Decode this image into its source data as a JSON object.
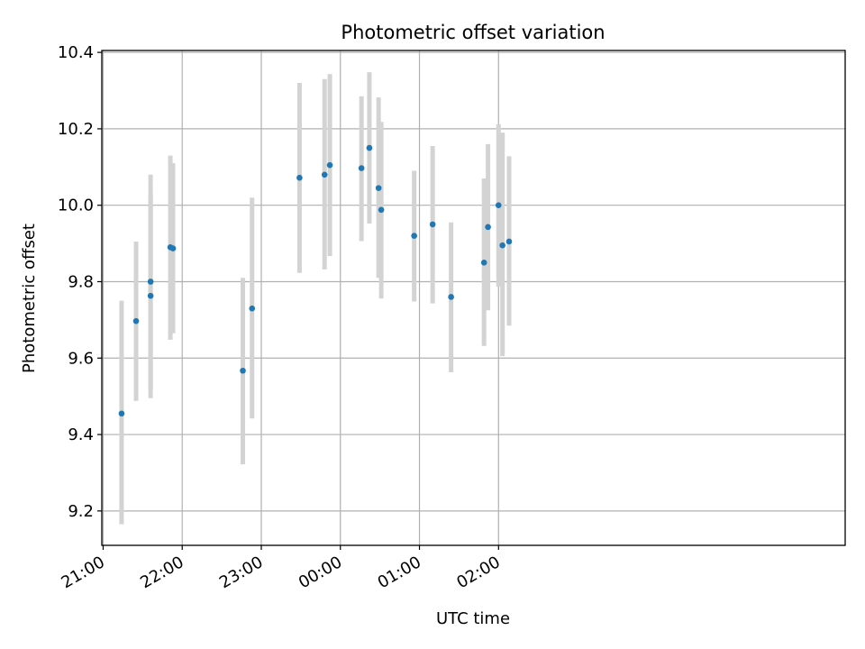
{
  "chart_data": {
    "type": "scatter",
    "title": "Photometric offset variation",
    "xlabel": "UTC time",
    "ylabel": "Photometric offset",
    "x_minutes_range": [
      1259,
      1823
    ],
    "ylim": [
      9.11,
      10.405
    ],
    "grid": true,
    "x_ticks": [
      {
        "minute": 1260,
        "label": "21:00"
      },
      {
        "minute": 1320,
        "label": "22:00"
      },
      {
        "minute": 1380,
        "label": "23:00"
      },
      {
        "minute": 1440,
        "label": "00:00"
      },
      {
        "minute": 1500,
        "label": "01:00"
      },
      {
        "minute": 1560,
        "label": "02:00"
      }
    ],
    "y_ticks": [
      9.2,
      9.4,
      9.6,
      9.8,
      10.0,
      10.2,
      10.4
    ],
    "y_tick_labels": [
      "9.2",
      "9.4",
      "9.6",
      "9.8",
      "10.0",
      "10.2",
      "10.4"
    ],
    "point_color": "#1f77b4",
    "errorbar_color": "#d3d3d3",
    "series": [
      {
        "points": [
          {
            "x": "21:14",
            "y": 9.455,
            "yerr_low": 9.165,
            "yerr_high": 9.75
          },
          {
            "x": "21:25",
            "y": 9.697,
            "yerr_low": 9.488,
            "yerr_high": 9.905
          },
          {
            "x": "21:36",
            "y": 9.763,
            "yerr_low": 9.495,
            "yerr_high": 10.03
          },
          {
            "x": "21:36",
            "y": 9.8,
            "yerr_low": 9.52,
            "yerr_high": 10.08
          },
          {
            "x": "21:51",
            "y": 9.89,
            "yerr_low": 9.648,
            "yerr_high": 10.13
          },
          {
            "x": "21:53",
            "y": 9.887,
            "yerr_low": 9.665,
            "yerr_high": 10.11
          },
          {
            "x": "22:46",
            "y": 9.567,
            "yerr_low": 9.322,
            "yerr_high": 9.81
          },
          {
            "x": "22:53",
            "y": 9.73,
            "yerr_low": 9.442,
            "yerr_high": 10.02
          },
          {
            "x": "23:29",
            "y": 10.072,
            "yerr_low": 9.823,
            "yerr_high": 10.32
          },
          {
            "x": "23:48",
            "y": 10.08,
            "yerr_low": 9.832,
            "yerr_high": 10.33
          },
          {
            "x": "23:52",
            "y": 10.105,
            "yerr_low": 9.867,
            "yerr_high": 10.343
          },
          {
            "x": "00:16",
            "y": 10.097,
            "yerr_low": 9.906,
            "yerr_high": 10.285
          },
          {
            "x": "00:22",
            "y": 10.15,
            "yerr_low": 9.952,
            "yerr_high": 10.348
          },
          {
            "x": "00:29",
            "y": 10.045,
            "yerr_low": 9.81,
            "yerr_high": 10.282
          },
          {
            "x": "00:31",
            "y": 9.988,
            "yerr_low": 9.756,
            "yerr_high": 10.218
          },
          {
            "x": "00:56",
            "y": 9.92,
            "yerr_low": 9.748,
            "yerr_high": 10.09
          },
          {
            "x": "01:10",
            "y": 9.95,
            "yerr_low": 9.743,
            "yerr_high": 10.155
          },
          {
            "x": "01:24",
            "y": 9.76,
            "yerr_low": 9.563,
            "yerr_high": 9.955
          },
          {
            "x": "01:49",
            "y": 9.85,
            "yerr_low": 9.632,
            "yerr_high": 10.07
          },
          {
            "x": "01:52",
            "y": 9.943,
            "yerr_low": 9.725,
            "yerr_high": 10.16
          },
          {
            "x": "02:00",
            "y": 10.0,
            "yerr_low": 9.787,
            "yerr_high": 10.212
          },
          {
            "x": "02:03",
            "y": 9.895,
            "yerr_low": 9.605,
            "yerr_high": 10.19
          },
          {
            "x": "02:08",
            "y": 9.905,
            "yerr_low": 9.685,
            "yerr_high": 10.128
          }
        ]
      }
    ]
  }
}
